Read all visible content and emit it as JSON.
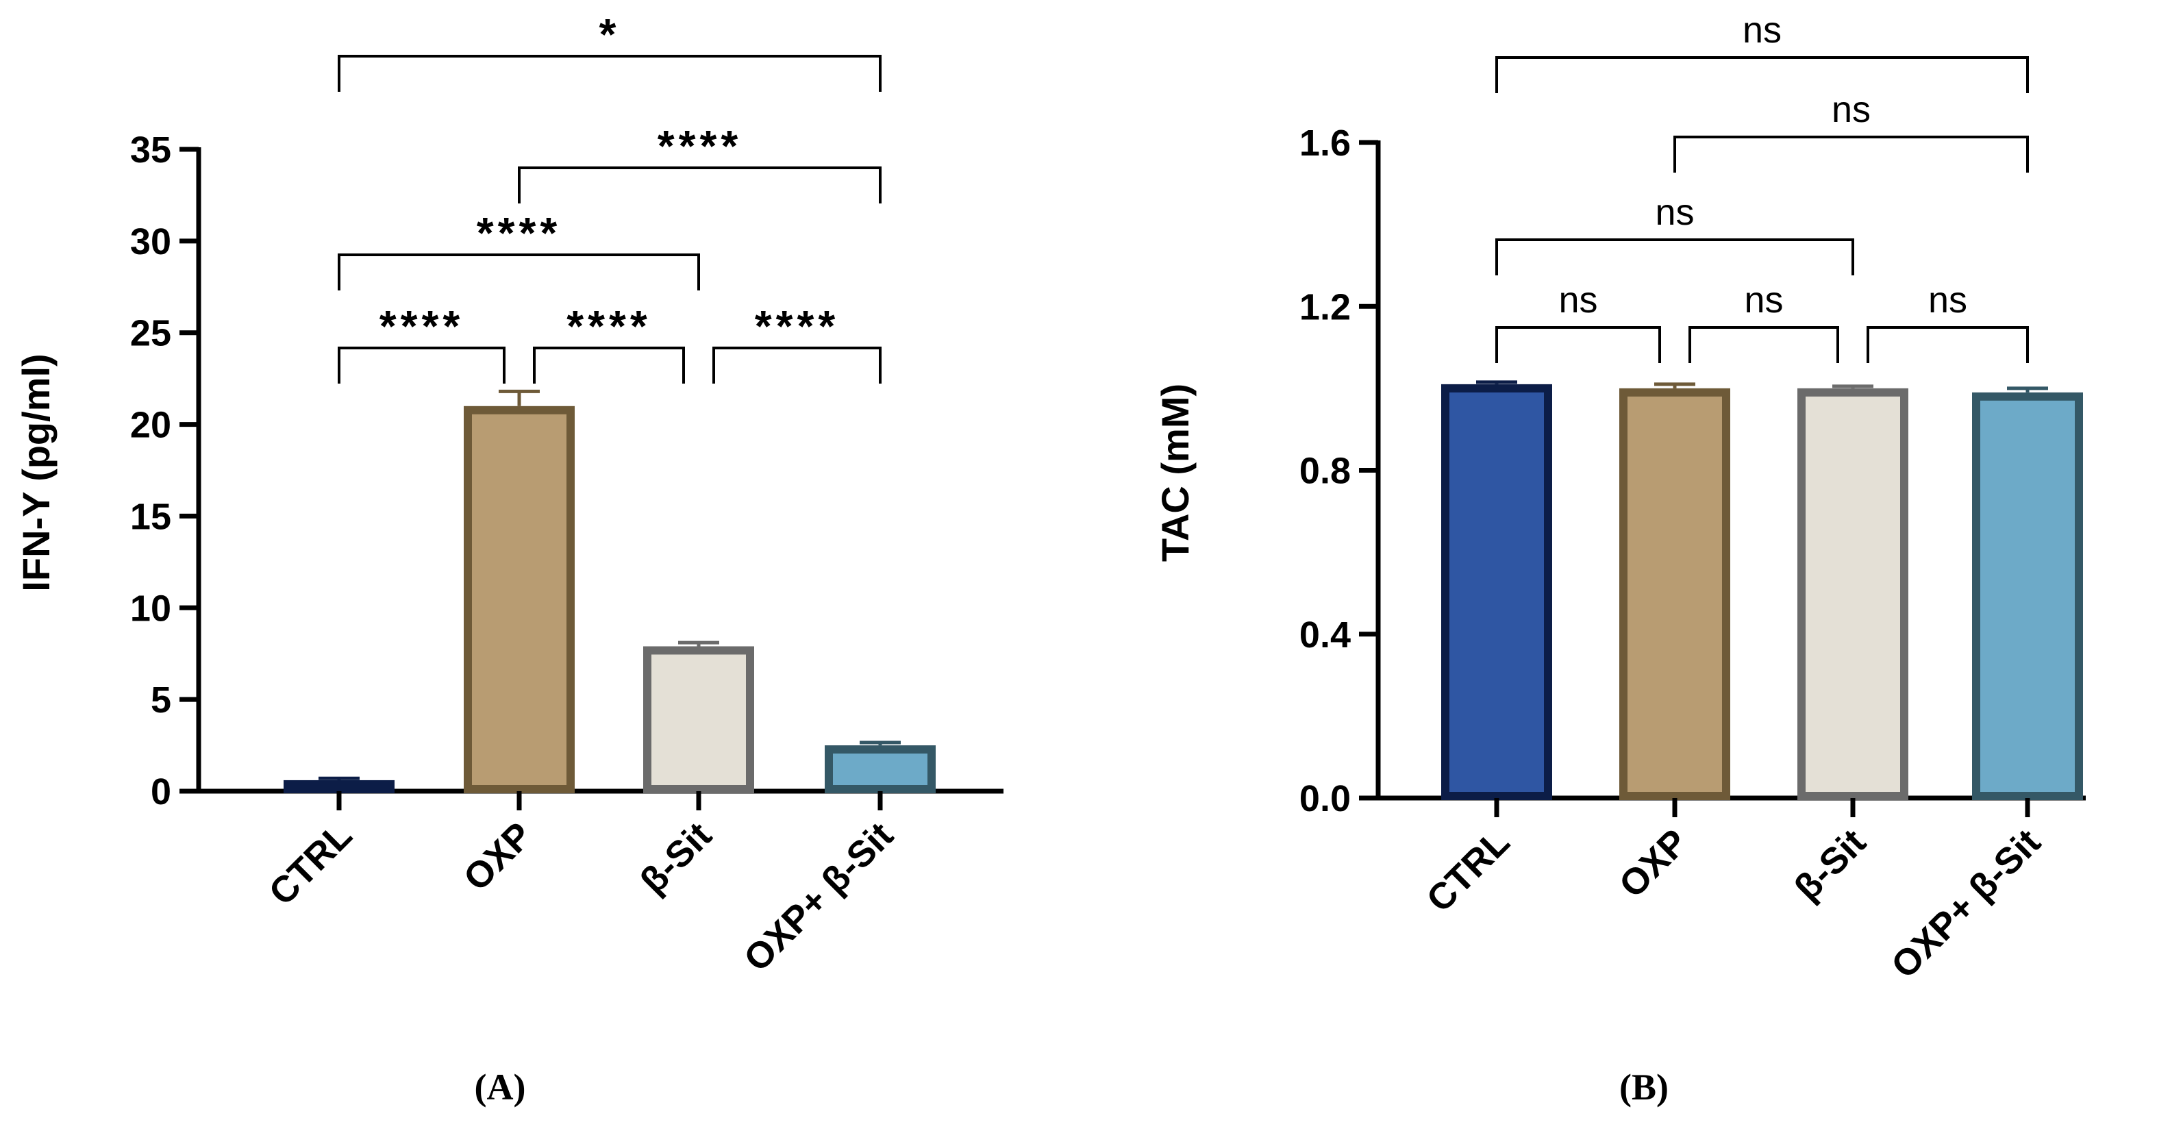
{
  "chart_data": [
    {
      "type": "bar",
      "panel_label": "(A)",
      "ylabel": "IFN-Y (pg/ml)",
      "categories": [
        "CTRL",
        "OXP",
        "β-Sit",
        "OXP+ β-Sit"
      ],
      "values": [
        0.6,
        21.0,
        7.9,
        2.5
      ],
      "errors": [
        0.1,
        0.8,
        0.2,
        0.15
      ],
      "ylim": [
        0,
        35
      ],
      "yticks": [
        "0",
        "5",
        "10",
        "15",
        "20",
        "25",
        "30",
        "35"
      ],
      "fill_colors": [
        "#2f56a3",
        "#b89c72",
        "#e4e0d6",
        "#6daac8"
      ],
      "edge_colors": [
        "#0c1d47",
        "#6e5a38",
        "#6b6b6b",
        "#345866"
      ],
      "comparisons": [
        {
          "from": 0,
          "to": 3,
          "label": "*"
        },
        {
          "from": 1,
          "to": 3,
          "label": "****"
        },
        {
          "from": 0,
          "to": 2,
          "label": "****"
        },
        {
          "from": 0,
          "to": 1,
          "label": "****"
        },
        {
          "from": 1,
          "to": 2,
          "label": "****"
        },
        {
          "from": 2,
          "to": 3,
          "label": "****"
        }
      ]
    },
    {
      "type": "bar",
      "panel_label": "(B)",
      "ylabel": "TAC (mM)",
      "categories": [
        "CTRL",
        "OXP",
        "β-Sit",
        "OXP+ β-Sit"
      ],
      "values": [
        1.01,
        1.0,
        1.0,
        0.99
      ],
      "errors": [
        0.005,
        0.01,
        0.005,
        0.01
      ],
      "ylim": [
        0,
        1.6
      ],
      "yticks": [
        "0.0",
        "0.4",
        "0.8",
        "1.2",
        "1.6"
      ],
      "fill_colors": [
        "#2f56a3",
        "#b89c72",
        "#e4e0d6",
        "#6daac8"
      ],
      "edge_colors": [
        "#0c1d47",
        "#6e5a38",
        "#6b6b6b",
        "#345866"
      ],
      "comparisons": [
        {
          "from": 0,
          "to": 3,
          "label": "ns"
        },
        {
          "from": 1,
          "to": 3,
          "label": "ns"
        },
        {
          "from": 0,
          "to": 2,
          "label": "ns"
        },
        {
          "from": 0,
          "to": 1,
          "label": "ns"
        },
        {
          "from": 1,
          "to": 2,
          "label": "ns"
        },
        {
          "from": 2,
          "to": 3,
          "label": "ns"
        }
      ]
    }
  ]
}
